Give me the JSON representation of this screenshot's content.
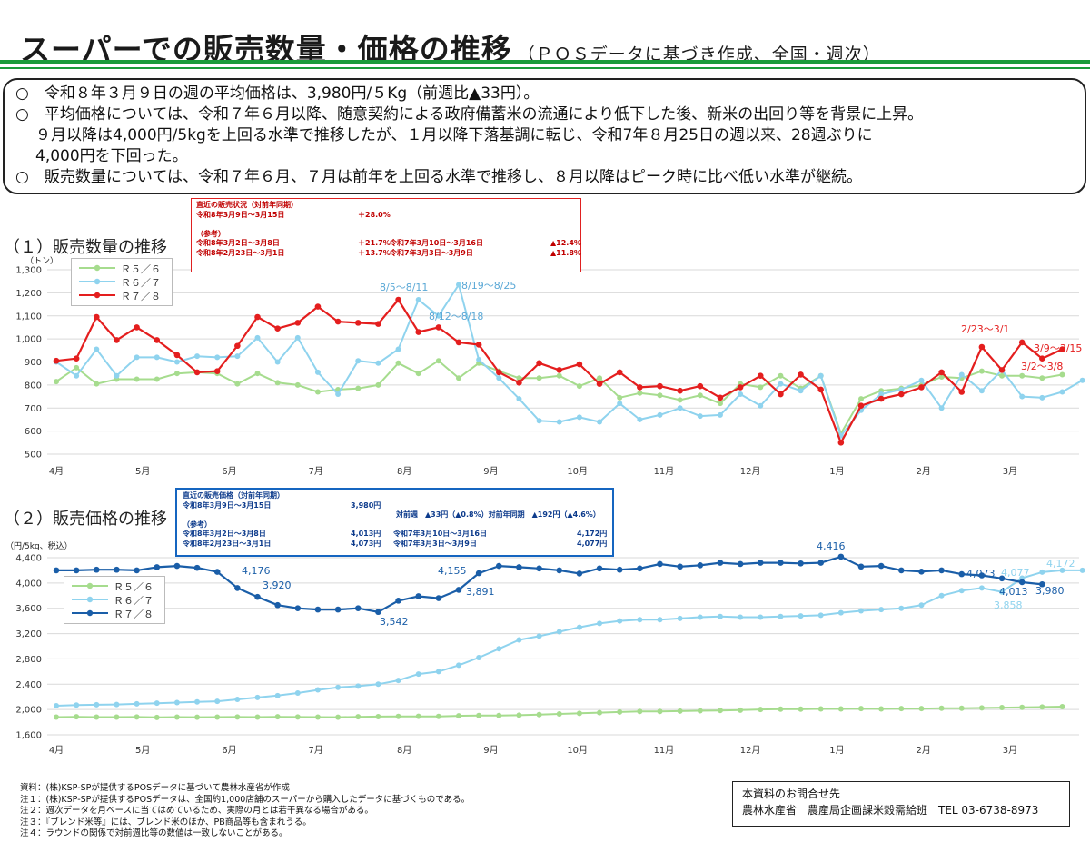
{
  "header": {
    "title": "スーパーでの販売数量・価格の推移",
    "subtitle": "（ＰＯＳデータに基づき作成、全国・週次）",
    "accent_color": "#1a9b3a"
  },
  "summary": {
    "lines": [
      "○　令和８年３月９日の週の平均価格は、3,980円/５Kg（前週比▲33円）。",
      "○　平均価格については、令和７年６月以降、随意契約による政府備蓄米の流通により低下した後、新米の出回り等を背景に上昇。",
      "９月以降は4,000円/5kgを上回る水準で推移したが、１月以降下落基調に転じ、令和7年８月25日の週以来、28週ぶりに",
      "4,000円を下回った。",
      "○　販売数量については、令和７年６月、７月は前年を上回る水準で推移し、８月以降はピーク時に比べ低い水準が継続。"
    ]
  },
  "section1": {
    "title": "（１）販売数量の推移",
    "unit": "（トン）"
  },
  "section2": {
    "title": "（２）販売価格の推移",
    "unit": "（円/5kg、税込）"
  },
  "box1": {
    "heading": "直近の販売状況（対前年同期）",
    "row1_date": "令和8年3月9日～3月15日",
    "row1_value": "＋28.0%",
    "ref_label": "（参考）",
    "row2_date": "令和8年3月2日～3月8日",
    "row2_value": "＋21.7%",
    "row2_prev": "令和7年3月10日～3月16日",
    "row2_prev_value": "▲12.4%",
    "row3_date": "令和8年2月23日～3月1日",
    "row3_value": "＋13.7%",
    "row3_prev": "令和7年3月3日～3月9日",
    "row3_prev_value": "▲11.8%"
  },
  "box2": {
    "heading": "直近の販売価格（対前年同期）",
    "row1_date": "令和8年3月9日～3月15日",
    "row1_value": "3,980円",
    "row1b": "対前週　▲33円（▲0.8%）対前年同期　▲192円（▲4.6%）",
    "ref_label": "（参考）",
    "row2_date": "令和8年3月2日～3月8日",
    "row2_value": "4,013円",
    "row2_prev": "令和7年3月10日～3月16日",
    "row2_prev_value": "4,172円",
    "row3_date": "令和8年2月23日～3月1日",
    "row3_value": "4,073円",
    "row3_prev": "令和7年3月3日～3月9日",
    "row3_prev_value": "4,077円"
  },
  "chart_data": [
    {
      "type": "line",
      "ylabel": "（トン）",
      "ylim": [
        500,
        1300
      ],
      "yticks": [
        500,
        600,
        700,
        800,
        900,
        1000,
        1100,
        1200,
        1300
      ],
      "ytick_labels": [
        "500",
        "600",
        "700",
        "800",
        "900",
        "1,000",
        "1,100",
        "1,200",
        "1,300"
      ],
      "grid": true,
      "legend": "top-left",
      "month_labels": [
        "4月",
        "5月",
        "6月",
        "7月",
        "8月",
        "9月",
        "10月",
        "11月",
        "12月",
        "1月",
        "2月",
        "3月"
      ],
      "month_week_index": [
        0,
        4.3,
        8.6,
        12.9,
        17.3,
        21.6,
        25.9,
        30.2,
        34.5,
        38.8,
        43.1,
        47.4
      ],
      "series": [
        {
          "name": "Ｒ５／６",
          "color": "#a6dc8e",
          "values": [
            815,
            875,
            805,
            825,
            825,
            825,
            850,
            855,
            850,
            805,
            850,
            810,
            800,
            770,
            780,
            785,
            800,
            895,
            850,
            905,
            830,
            895,
            860,
            830,
            830,
            840,
            795,
            830,
            745,
            765,
            755,
            735,
            755,
            720,
            805,
            790,
            840,
            785,
            840,
            590,
            740,
            775,
            785,
            800,
            835,
            830,
            860,
            840,
            840,
            830,
            845
          ]
        },
        {
          "name": "Ｒ６／７",
          "color": "#8fd3ee",
          "values": [
            900,
            840,
            955,
            840,
            920,
            920,
            900,
            925,
            920,
            925,
            1005,
            900,
            1005,
            855,
            760,
            905,
            895,
            955,
            1170,
            1100,
            1235,
            910,
            830,
            740,
            645,
            640,
            660,
            640,
            720,
            650,
            670,
            700,
            665,
            670,
            760,
            710,
            805,
            775,
            840,
            580,
            690,
            760,
            780,
            820,
            700,
            845,
            775,
            865,
            750,
            745,
            770,
            820
          ]
        },
        {
          "name": "Ｒ７／８",
          "color": "#e41e1e",
          "values": [
            905,
            915,
            1095,
            995,
            1050,
            995,
            930,
            855,
            860,
            970,
            1095,
            1045,
            1070,
            1140,
            1075,
            1070,
            1065,
            1170,
            1030,
            1050,
            985,
            975,
            855,
            810,
            895,
            865,
            890,
            805,
            855,
            790,
            795,
            775,
            795,
            745,
            790,
            840,
            760,
            845,
            780,
            550,
            710,
            740,
            760,
            790,
            855,
            770,
            965,
            865,
            985,
            915,
            955
          ]
        }
      ],
      "annotations": [
        "8/5～8/11",
        "8/19～8/25",
        "8/12～8/18",
        "2/23～3/1",
        "3/9～3/15",
        "3/2～3/8"
      ]
    },
    {
      "type": "line",
      "ylabel": "（円/5kg、税込）",
      "ylim": [
        1600,
        4400
      ],
      "yticks": [
        1600,
        2000,
        2400,
        2800,
        3200,
        3600,
        4000,
        4400
      ],
      "ytick_labels": [
        "1,600",
        "2,000",
        "2,400",
        "2,800",
        "3,200",
        "3,600",
        "4,000",
        "4,400"
      ],
      "grid": true,
      "legend": "middle-left",
      "month_labels": [
        "4月",
        "5月",
        "6月",
        "7月",
        "8月",
        "9月",
        "10月",
        "11月",
        "12月",
        "1月",
        "2月",
        "3月"
      ],
      "month_week_index": [
        0,
        4.3,
        8.6,
        12.9,
        17.3,
        21.6,
        25.9,
        30.2,
        34.5,
        38.8,
        43.1,
        47.4
      ],
      "series": [
        {
          "name": "Ｒ５／６",
          "color": "#a6dc8e",
          "values": [
            1880,
            1885,
            1880,
            1880,
            1882,
            1875,
            1880,
            1878,
            1880,
            1882,
            1880,
            1885,
            1882,
            1880,
            1878,
            1885,
            1888,
            1890,
            1892,
            1890,
            1900,
            1905,
            1905,
            1910,
            1920,
            1930,
            1940,
            1950,
            1960,
            1970,
            1970,
            1975,
            1980,
            1985,
            1990,
            2000,
            2005,
            2005,
            2010,
            2010,
            2015,
            2010,
            2015,
            2015,
            2020,
            2020,
            2025,
            2030,
            2035,
            2040,
            2045
          ]
        },
        {
          "name": "Ｒ６／７",
          "color": "#8fd3ee",
          "values": [
            2060,
            2070,
            2075,
            2080,
            2090,
            2100,
            2110,
            2120,
            2130,
            2160,
            2190,
            2220,
            2260,
            2310,
            2350,
            2370,
            2400,
            2460,
            2560,
            2600,
            2700,
            2820,
            2960,
            3100,
            3160,
            3230,
            3300,
            3360,
            3400,
            3420,
            3420,
            3440,
            3460,
            3470,
            3460,
            3460,
            3470,
            3480,
            3490,
            3530,
            3560,
            3580,
            3600,
            3650,
            3800,
            3880,
            3920,
            3858,
            4077,
            4172,
            4200,
            4200
          ]
        },
        {
          "name": "Ｒ７／８",
          "color": "#1a5ea8",
          "values": [
            4200,
            4200,
            4210,
            4210,
            4200,
            4250,
            4270,
            4240,
            4176,
            3920,
            3780,
            3650,
            3600,
            3580,
            3580,
            3600,
            3542,
            3720,
            3790,
            3760,
            3891,
            4155,
            4270,
            4250,
            4230,
            4200,
            4150,
            4230,
            4210,
            4230,
            4300,
            4260,
            4280,
            4320,
            4300,
            4320,
            4320,
            4310,
            4320,
            4416,
            4260,
            4270,
            4200,
            4180,
            4200,
            4140,
            4120,
            4073,
            4013,
            3980
          ]
        }
      ],
      "data_labels": [
        "4,176",
        "3,920",
        "3,542",
        "4,155",
        "3,891",
        "4,416",
        "4,073",
        "3,858",
        "4,077",
        "4,172",
        "4,013",
        "3,980"
      ]
    }
  ],
  "notes": [
    "資料：(株)KSP-SPが提供するPOSデータに基づいて農林水産省が作成",
    "注１：(株)KSP-SPが提供するPOSデータは、全国約1,000店舗のスーパーから購入したデータに基づくものである。",
    "注２：週次データを月ベースに当てはめているため、実際の月とは若干異なる場合がある。",
    "注３：『ブレンド米等』には、ブレンド米のほか、PB商品等も含まれうる。",
    "注４：ラウンドの関係で対前週比等の数値は一致しないことがある。"
  ],
  "contact": {
    "title": "本資料のお問合せ先",
    "line": "農林水産省　農産局企画課米穀需給班　TEL 03-6738-8973"
  }
}
